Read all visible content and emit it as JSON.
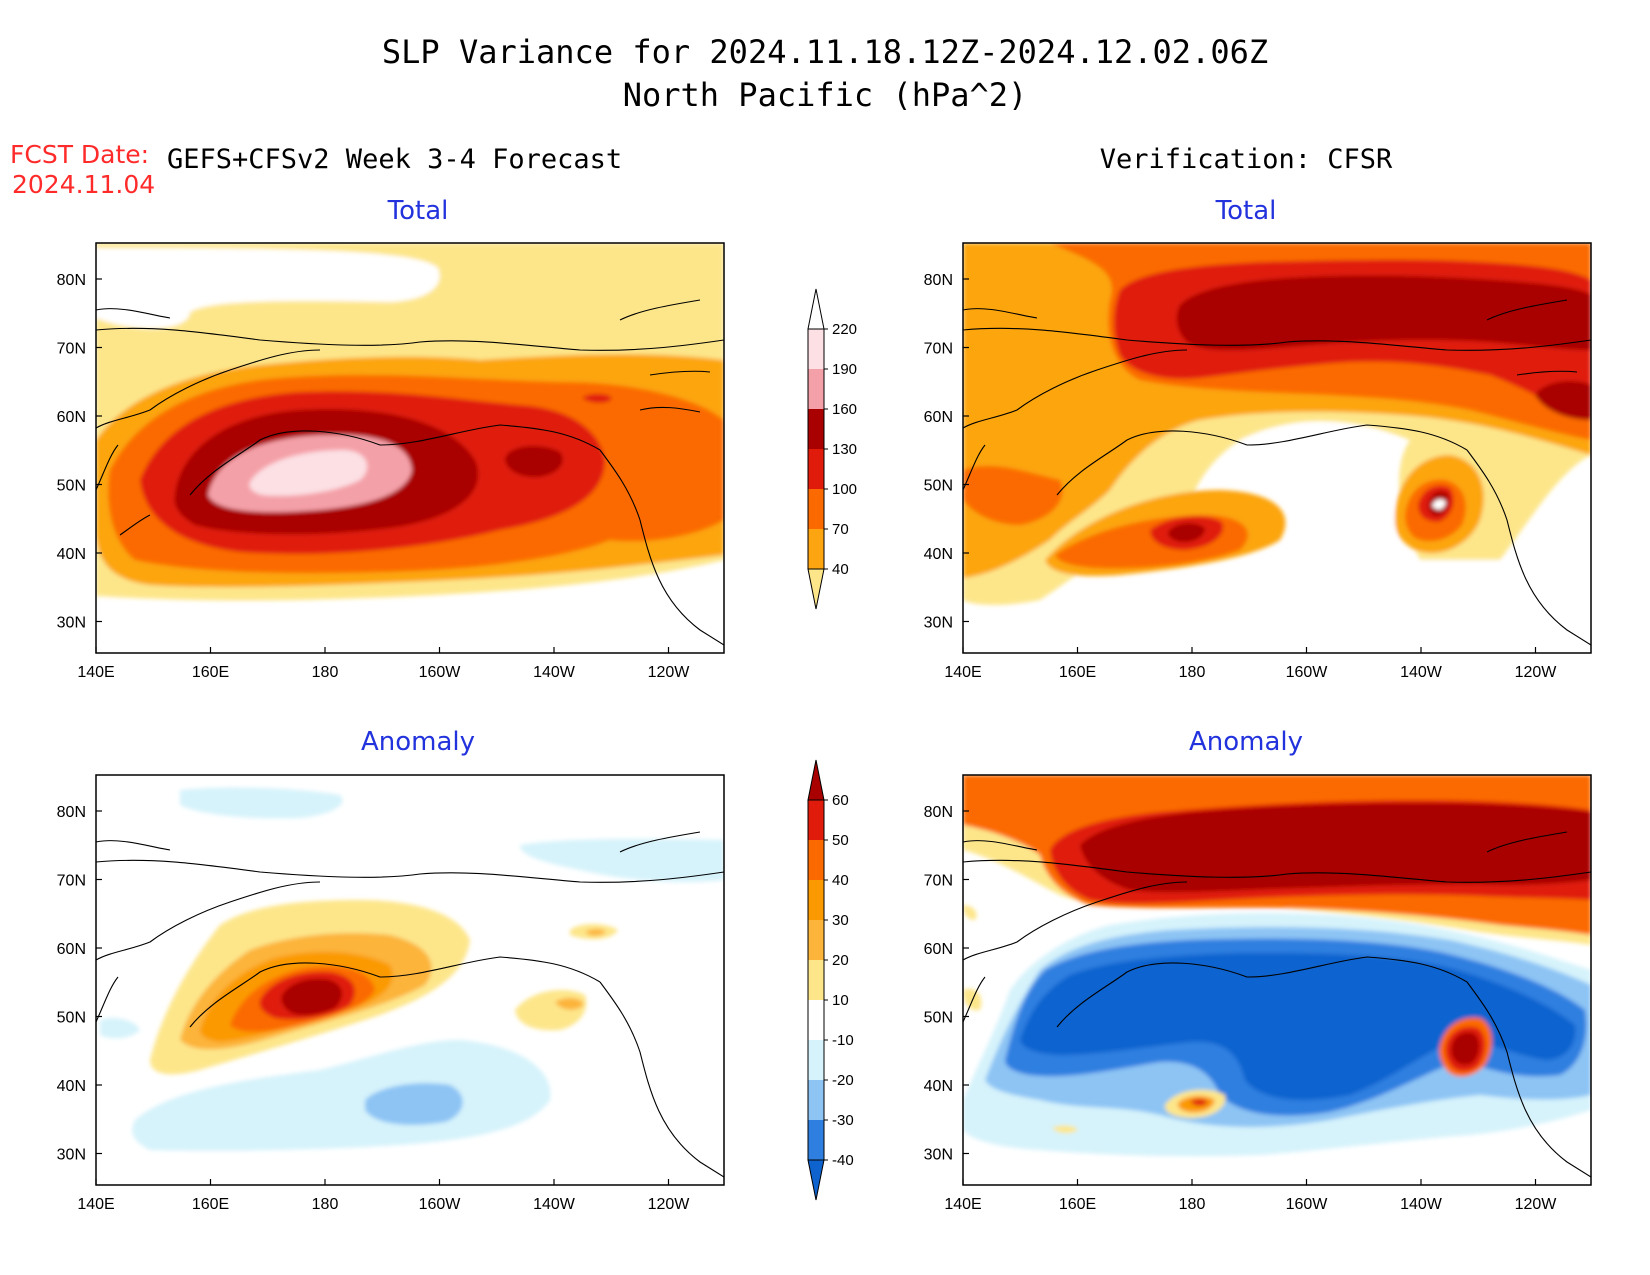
{
  "header": {
    "title_line1": "SLP Variance for 2024.11.18.12Z-2024.12.02.06Z",
    "title_line2": "North Pacific (hPa^2)",
    "fcst_label": "FCST Date:",
    "fcst_date": "2024.11.04",
    "left_heading": "GEFS+CFSv2 Week 3-4 Forecast",
    "right_heading": "Verification: CFSR"
  },
  "panels": [
    {
      "title": "Total",
      "kind": "total",
      "source": "forecast"
    },
    {
      "title": "Total",
      "kind": "total",
      "source": "verification"
    },
    {
      "title": "Anomaly",
      "kind": "anomaly",
      "source": "forecast"
    },
    {
      "title": "Anomaly",
      "kind": "anomaly",
      "source": "verification"
    }
  ],
  "axes": {
    "lon_ticks": [
      "140E",
      "160E",
      "180",
      "160W",
      "140W",
      "120W"
    ],
    "lat_ticks": [
      "80N",
      "70N",
      "60N",
      "50N",
      "40N",
      "30N"
    ]
  },
  "colorbars": {
    "total": {
      "levels": [
        "40",
        "70",
        "100",
        "130",
        "160",
        "190",
        "220"
      ],
      "colors": [
        "#fde68a",
        "#fca510",
        "#fb6a00",
        "#e01b0b",
        "#a90000",
        "#f4a0a8",
        "#fce0e4",
        "#ffffff"
      ]
    },
    "anomaly": {
      "levels": [
        "-40",
        "-30",
        "-20",
        "-10",
        "10",
        "20",
        "30",
        "40",
        "50",
        "60"
      ],
      "colors": [
        "#0f63cf",
        "#2f7fe0",
        "#8dc4f4",
        "#d6f3fb",
        "#ffffff",
        "#fde68a",
        "#fcb43a",
        "#fb9a00",
        "#fb6a00",
        "#e01b0b",
        "#a90000"
      ]
    }
  }
}
